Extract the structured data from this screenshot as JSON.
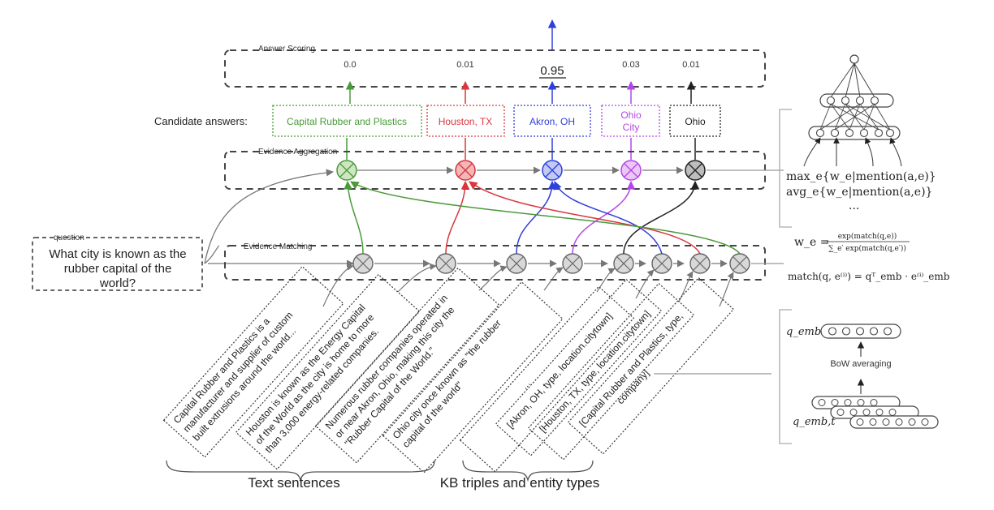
{
  "labels": {
    "answer_scoring": "Answer Scoring",
    "candidate_answers": "Candidate answers:",
    "evidence_aggregation": "Evidence Aggregation",
    "evidence_matching": "Evidence Matching",
    "question_tag": "question",
    "text_sentences": "Text sentences",
    "kb_triples": "KB triples and entity types",
    "bow_averaging": "BoW averaging"
  },
  "question": [
    "What city is known as the",
    "rubber capital of the",
    "world?"
  ],
  "candidates": [
    {
      "label": "Capital Rubber and Plastics",
      "score": "0.0",
      "color": "#4a9a3a"
    },
    {
      "label": "Houston, TX",
      "score": "0.01",
      "color": "#d9363e"
    },
    {
      "label": "Akron, OH",
      "score": "0.95",
      "color": "#2f3fd9"
    },
    {
      "label": "Ohio City",
      "label_lines": [
        "Ohio",
        "City"
      ],
      "score": "0.03",
      "color": "#b347e6"
    },
    {
      "label": "Ohio",
      "score": "0.01",
      "color": "#222222"
    }
  ],
  "sentences": [
    {
      "lines": [
        "Capital Rubber and Plastics is a",
        "manufacturer and supplier of custom",
        "built extrusions around the world..."
      ]
    },
    {
      "lines": [
        "Houston is known as the Energy Capital",
        "of the World as the city is home to more",
        "than 3,000 energy-related companies."
      ]
    },
    {
      "lines": [
        "Numerous rubber companies operated in",
        "or near Akron, Ohio, making this city the",
        "\"Rubber Capital of the World.\""
      ]
    },
    {
      "lines": [
        "Ohio city once known as \"the rubber",
        "capital of the world\""
      ]
    }
  ],
  "kb": [
    {
      "lines": [
        "..."
      ]
    },
    {
      "lines": [
        "[Akron, OH, type, location.citytown]"
      ]
    },
    {
      "lines": [
        "[Houston, TX, type, location.citytown]"
      ]
    },
    {
      "lines": [
        "[Capital Rubber and Plastics, type,",
        "company]"
      ]
    }
  ],
  "formulas": {
    "max": "max_e{w_e|mention(a,e)}",
    "avg": "avg_e{w_e|mention(a,e)}",
    "ellipsis": "...",
    "we_lhs": "w_e =",
    "we_num": "exp(match(q,e))",
    "we_den": "∑_e′ exp(match(q,e′))",
    "match": "match(q, e⁽ⁱ⁾) = qᵀ_emb · e⁽ⁱ⁾_emb",
    "q_emb": "q_emb",
    "q_emb_t": "q_emb,t"
  }
}
